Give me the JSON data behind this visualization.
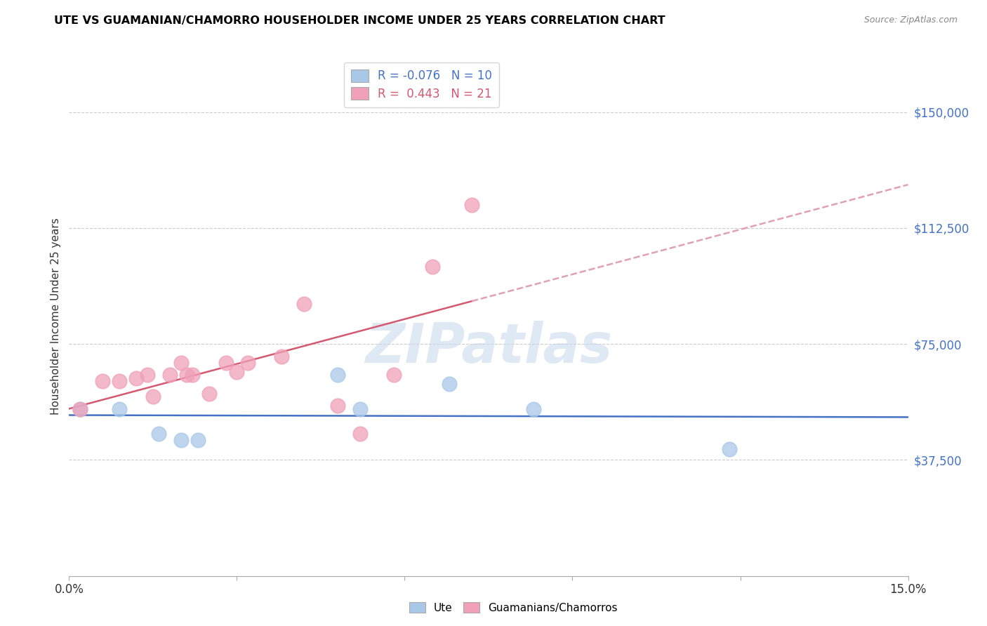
{
  "title": "UTE VS GUAMANIAN/CHAMORRO HOUSEHOLDER INCOME UNDER 25 YEARS CORRELATION CHART",
  "source": "Source: ZipAtlas.com",
  "ylabel": "Householder Income Under 25 years",
  "ytick_labels": [
    "$37,500",
    "$75,000",
    "$112,500",
    "$150,000"
  ],
  "ytick_values": [
    37500,
    75000,
    112500,
    150000
  ],
  "xmin": 0.0,
  "xmax": 0.15,
  "ymin": 0,
  "ymax": 168000,
  "watermark": "ZIPatlas",
  "ute_color": "#a8c8e8",
  "guam_color": "#f0a0b8",
  "ute_line_color": "#4472c4",
  "guam_line_color": "#d45870",
  "guam_dash_color": "#e0a0b8",
  "ute_points": [
    [
      0.002,
      54000
    ],
    [
      0.009,
      54000
    ],
    [
      0.016,
      46000
    ],
    [
      0.02,
      44000
    ],
    [
      0.023,
      44000
    ],
    [
      0.048,
      65000
    ],
    [
      0.052,
      54000
    ],
    [
      0.068,
      62000
    ],
    [
      0.083,
      54000
    ],
    [
      0.118,
      41000
    ]
  ],
  "guam_points": [
    [
      0.002,
      54000
    ],
    [
      0.006,
      63000
    ],
    [
      0.009,
      63000
    ],
    [
      0.012,
      64000
    ],
    [
      0.014,
      65000
    ],
    [
      0.015,
      58000
    ],
    [
      0.018,
      65000
    ],
    [
      0.02,
      69000
    ],
    [
      0.021,
      65000
    ],
    [
      0.022,
      65000
    ],
    [
      0.025,
      59000
    ],
    [
      0.028,
      69000
    ],
    [
      0.03,
      66000
    ],
    [
      0.032,
      69000
    ],
    [
      0.038,
      71000
    ],
    [
      0.042,
      88000
    ],
    [
      0.048,
      55000
    ],
    [
      0.052,
      46000
    ],
    [
      0.058,
      65000
    ],
    [
      0.065,
      100000
    ],
    [
      0.072,
      120000
    ]
  ]
}
